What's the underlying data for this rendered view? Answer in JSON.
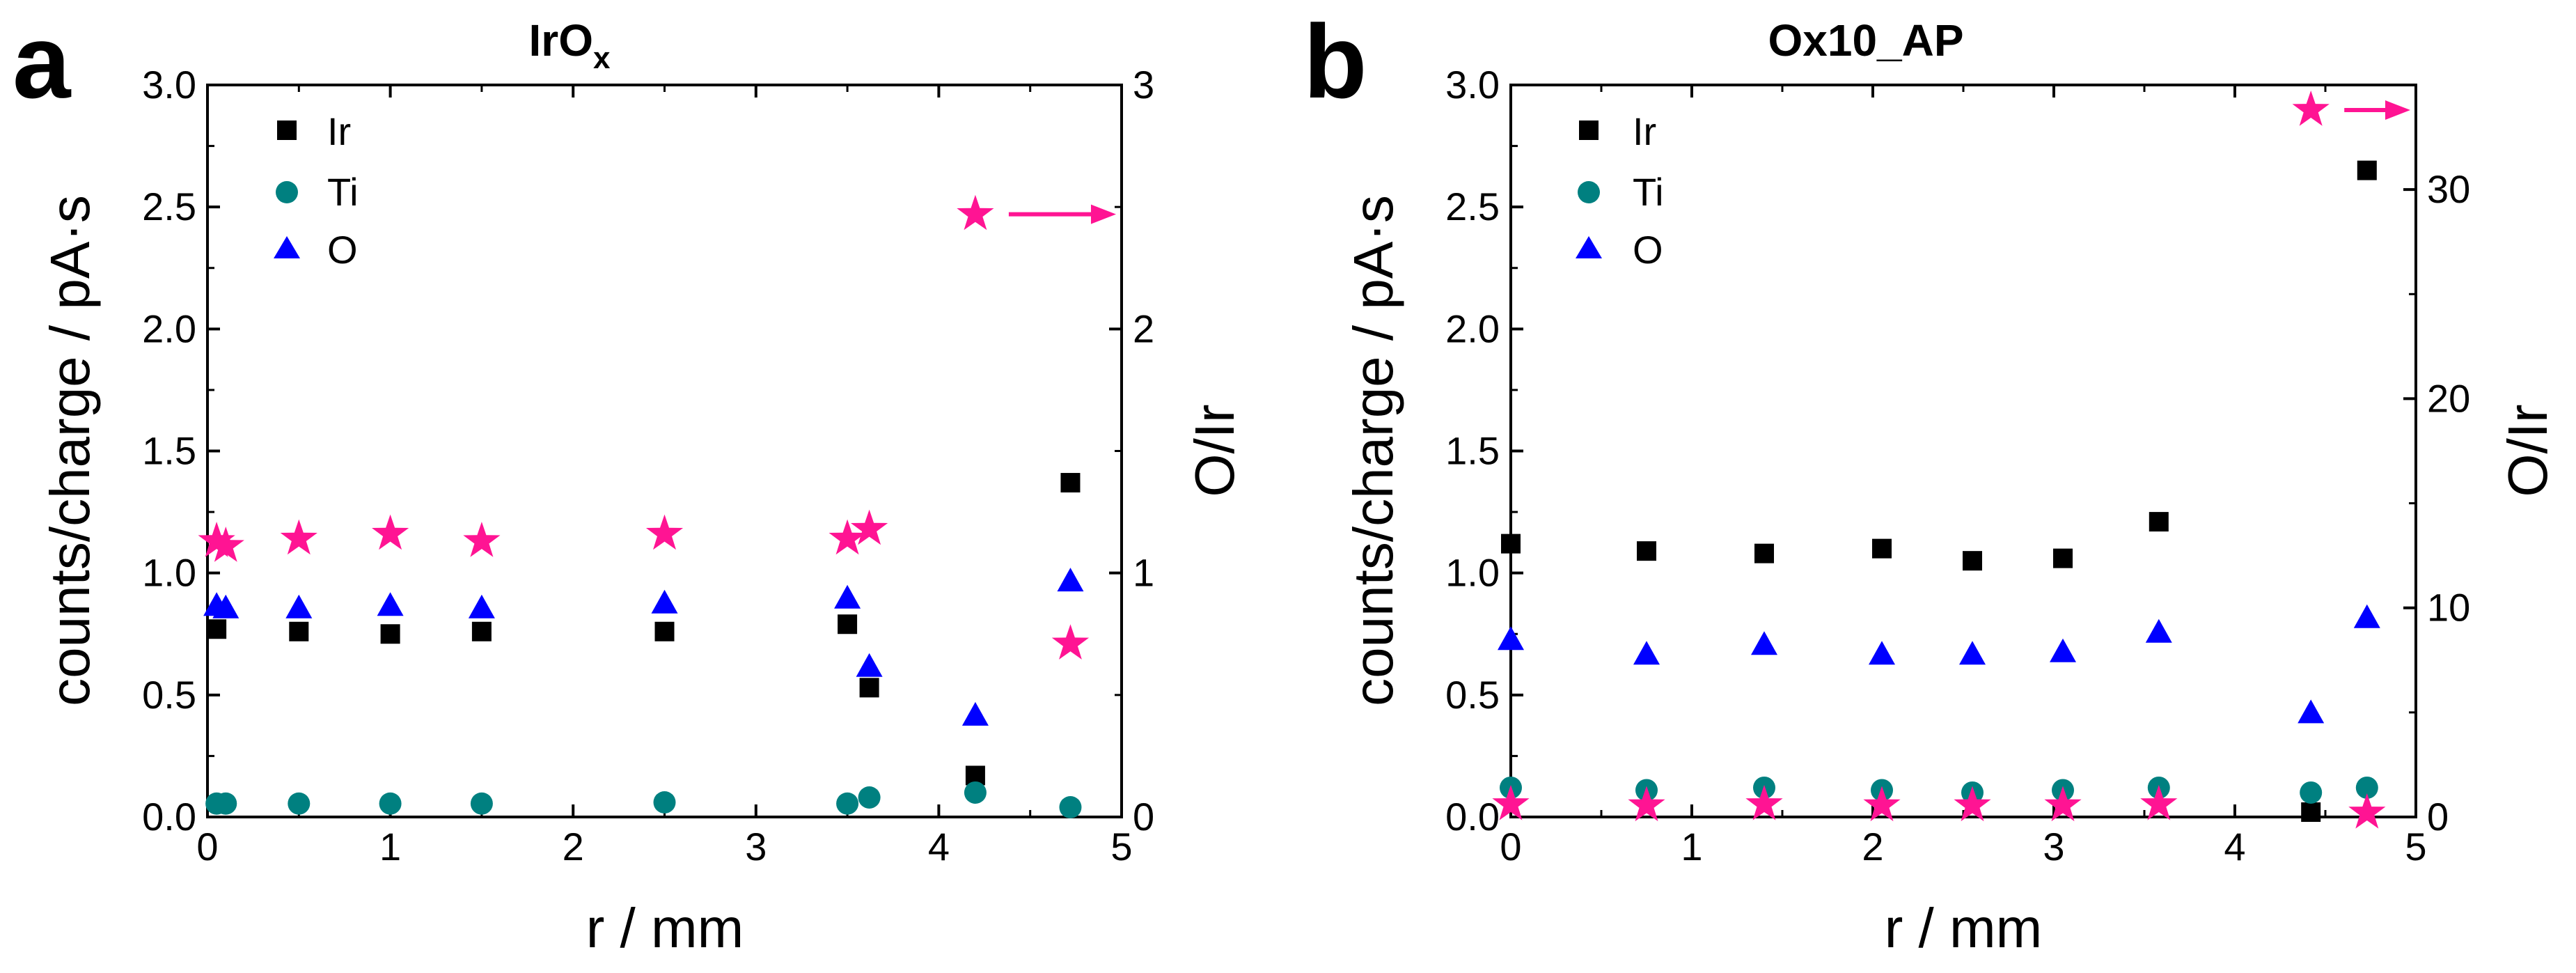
{
  "chart_data": [
    {
      "panel_label": "a",
      "type": "scatter",
      "title": "IrO",
      "title_subscript": "x",
      "xlabel": "r / mm",
      "ylabel": "counts/charge / pA·s",
      "y2label": "O/Ir",
      "xlim": [
        0,
        5
      ],
      "ylim": [
        0,
        3
      ],
      "y2lim": [
        0,
        3
      ],
      "xticks": [
        "0",
        "1",
        "2",
        "3",
        "4",
        "5"
      ],
      "yticks": [
        "0.0",
        "0.5",
        "1.0",
        "1.5",
        "2.0",
        "2.5",
        "3.0"
      ],
      "y2ticks": [
        "0",
        "1",
        "2",
        "3"
      ],
      "series": [
        {
          "name": "Ir",
          "marker": "square",
          "color": "#000000",
          "x": [
            0.05,
            0.5,
            1.0,
            1.5,
            2.5,
            3.5,
            3.62,
            4.2,
            4.72
          ],
          "y": [
            0.77,
            0.76,
            0.75,
            0.76,
            0.76,
            0.79,
            0.53,
            0.17,
            1.37
          ]
        },
        {
          "name": "Ti",
          "marker": "circle",
          "color": "#008080",
          "x": [
            0.05,
            0.1,
            0.5,
            1.0,
            1.5,
            2.5,
            3.5,
            3.62,
            4.2,
            4.72
          ],
          "y": [
            0.055,
            0.055,
            0.055,
            0.055,
            0.055,
            0.06,
            0.055,
            0.08,
            0.1,
            0.04
          ]
        },
        {
          "name": "O",
          "marker": "triangle",
          "color": "#0000ff",
          "x": [
            0.05,
            0.1,
            0.5,
            1.0,
            1.5,
            2.5,
            3.5,
            3.62,
            4.2,
            4.72
          ],
          "y": [
            0.87,
            0.86,
            0.86,
            0.87,
            0.86,
            0.88,
            0.9,
            0.62,
            0.42,
            0.97
          ]
        },
        {
          "name": "O/Ir",
          "marker": "star",
          "color": "#ff1493",
          "axis": "right",
          "x": [
            0.05,
            0.1,
            0.5,
            1.0,
            1.5,
            2.5,
            3.5,
            3.62,
            4.72
          ],
          "y": [
            1.13,
            1.11,
            1.14,
            1.16,
            1.13,
            1.16,
            1.14,
            1.18,
            0.71
          ]
        }
      ],
      "annotation": {
        "type": "star-arrow-right",
        "x": 4.2,
        "y": 2.47
      }
    },
    {
      "panel_label": "b",
      "type": "scatter",
      "title": "Ox10_AP",
      "title_subscript": "",
      "xlabel": "r / mm",
      "ylabel": "counts/charge / pA·s",
      "y2label": "O/Ir",
      "xlim": [
        0,
        5
      ],
      "ylim": [
        0,
        3
      ],
      "y2lim": [
        0,
        35
      ],
      "xticks": [
        "0",
        "1",
        "2",
        "3",
        "4",
        "5"
      ],
      "yticks": [
        "0.0",
        "0.5",
        "1.0",
        "1.5",
        "2.0",
        "2.5",
        "3.0"
      ],
      "y2ticks": [
        "0",
        "10",
        "20",
        "30"
      ],
      "series": [
        {
          "name": "Ir",
          "marker": "square",
          "color": "#000000",
          "x": [
            0.0,
            0.75,
            1.4,
            2.05,
            2.55,
            3.05,
            3.58,
            4.42,
            4.73
          ],
          "y": [
            1.12,
            1.09,
            1.08,
            1.1,
            1.05,
            1.06,
            1.21,
            0.02,
            2.65
          ]
        },
        {
          "name": "Ti",
          "marker": "circle",
          "color": "#008080",
          "x": [
            0.0,
            0.75,
            1.4,
            2.05,
            2.55,
            3.05,
            3.58,
            4.42,
            4.73
          ],
          "y": [
            0.12,
            0.11,
            0.12,
            0.11,
            0.1,
            0.11,
            0.12,
            0.1,
            0.12
          ]
        },
        {
          "name": "O",
          "marker": "triangle",
          "color": "#0000ff",
          "x": [
            0.0,
            0.75,
            1.4,
            2.05,
            2.55,
            3.05,
            3.58,
            4.42,
            4.73
          ],
          "y": [
            0.73,
            0.67,
            0.71,
            0.67,
            0.67,
            0.68,
            0.76,
            0.43,
            0.82
          ]
        },
        {
          "name": "O/Ir",
          "marker": "star",
          "color": "#ff1493",
          "axis": "right",
          "x": [
            0.0,
            0.75,
            1.4,
            2.05,
            2.55,
            3.05,
            3.58,
            4.73
          ],
          "y": [
            0.6,
            0.55,
            0.6,
            0.55,
            0.55,
            0.55,
            0.6,
            0.2
          ]
        }
      ],
      "annotation": {
        "type": "star-arrow-right",
        "x": 4.42,
        "y": 33.8
      }
    }
  ]
}
